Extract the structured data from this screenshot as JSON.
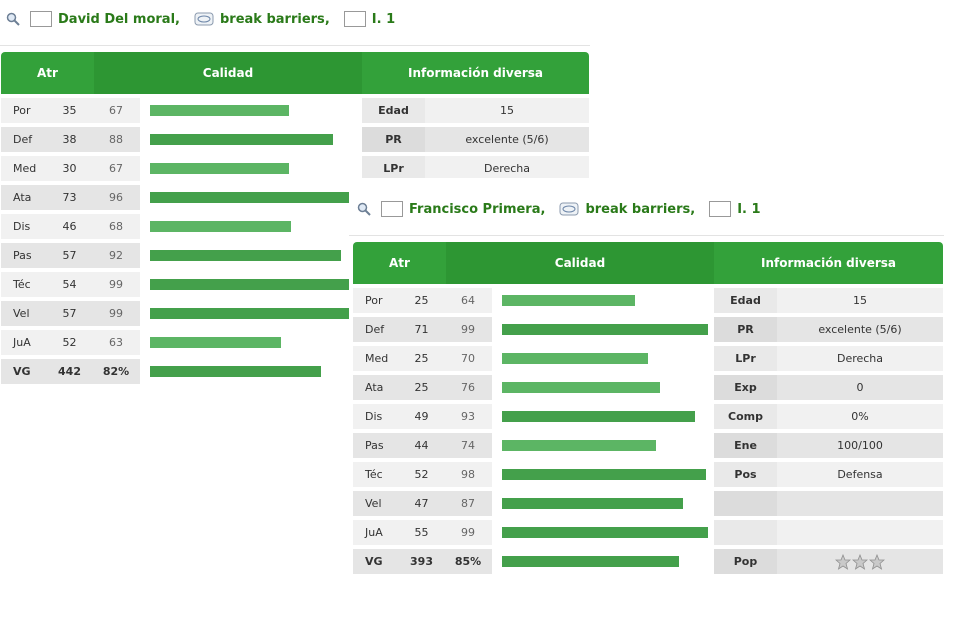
{
  "panel_a": {
    "player_name": "David Del moral",
    "team_name": "break barriers",
    "league": "I. 1",
    "headers": {
      "atr": "Atr",
      "calidad": "Calidad",
      "info": "Información diversa"
    },
    "rows": [
      {
        "attr": "Por",
        "value": "35",
        "potential": "67",
        "bar_pct": 67,
        "info_label": "Edad",
        "info_value": "15"
      },
      {
        "attr": "Def",
        "value": "38",
        "potential": "88",
        "bar_pct": 88,
        "info_label": "PR",
        "info_value": "excelente (5/6)"
      },
      {
        "attr": "Med",
        "value": "30",
        "potential": "67",
        "bar_pct": 67,
        "info_label": "LPr",
        "info_value": "Derecha"
      },
      {
        "attr": "Ata",
        "value": "73",
        "potential": "96",
        "bar_pct": 96,
        "info_label": "",
        "info_value": ""
      },
      {
        "attr": "Dis",
        "value": "46",
        "potential": "68",
        "bar_pct": 68,
        "info_label": "",
        "info_value": ""
      },
      {
        "attr": "Pas",
        "value": "57",
        "potential": "92",
        "bar_pct": 92,
        "info_label": "",
        "info_value": ""
      },
      {
        "attr": "Téc",
        "value": "54",
        "potential": "99",
        "bar_pct": 99,
        "info_label": "",
        "info_value": ""
      },
      {
        "attr": "Vel",
        "value": "57",
        "potential": "99",
        "bar_pct": 99,
        "info_label": "",
        "info_value": ""
      },
      {
        "attr": "JuA",
        "value": "52",
        "potential": "63",
        "bar_pct": 63,
        "info_label": "",
        "info_value": ""
      }
    ],
    "total": {
      "attr": "VG",
      "value": "442",
      "potential": "82%",
      "bar_pct": 82
    }
  },
  "panel_b": {
    "player_name": "Francisco Primera",
    "team_name": "break barriers",
    "league": "I. 1",
    "headers": {
      "atr": "Atr",
      "calidad": "Calidad",
      "info": "Información diversa"
    },
    "rows": [
      {
        "attr": "Por",
        "value": "25",
        "potential": "64",
        "bar_pct": 64,
        "info_label": "Edad",
        "info_value": "15"
      },
      {
        "attr": "Def",
        "value": "71",
        "potential": "99",
        "bar_pct": 99,
        "info_label": "PR",
        "info_value": "excelente (5/6)"
      },
      {
        "attr": "Med",
        "value": "25",
        "potential": "70",
        "bar_pct": 70,
        "info_label": "LPr",
        "info_value": "Derecha"
      },
      {
        "attr": "Ata",
        "value": "25",
        "potential": "76",
        "bar_pct": 76,
        "info_label": "Exp",
        "info_value": "0"
      },
      {
        "attr": "Dis",
        "value": "49",
        "potential": "93",
        "bar_pct": 93,
        "info_label": "Comp",
        "info_value": "0%"
      },
      {
        "attr": "Pas",
        "value": "44",
        "potential": "74",
        "bar_pct": 74,
        "info_label": "Ene",
        "info_value": "100/100"
      },
      {
        "attr": "Téc",
        "value": "52",
        "potential": "98",
        "bar_pct": 98,
        "info_label": "Pos",
        "info_value": "Defensa"
      },
      {
        "attr": "Vel",
        "value": "47",
        "potential": "87",
        "bar_pct": 87,
        "info_label": "",
        "info_value": ""
      },
      {
        "attr": "JuA",
        "value": "55",
        "potential": "99",
        "bar_pct": 99,
        "info_label": "",
        "info_value": ""
      }
    ],
    "total": {
      "attr": "VG",
      "value": "393",
      "potential": "85%",
      "bar_pct": 85,
      "info_label": "Pop"
    },
    "pop_stars": {
      "filled": 0,
      "total": 3
    }
  },
  "colors": {
    "brand_green": "#2a7a19",
    "header_green": "#33a13a",
    "bar_green": "#44a04b"
  },
  "icons": [
    "magnifier-icon",
    "venezuela-flag-icon",
    "team-logo-icon",
    "star-icon"
  ]
}
